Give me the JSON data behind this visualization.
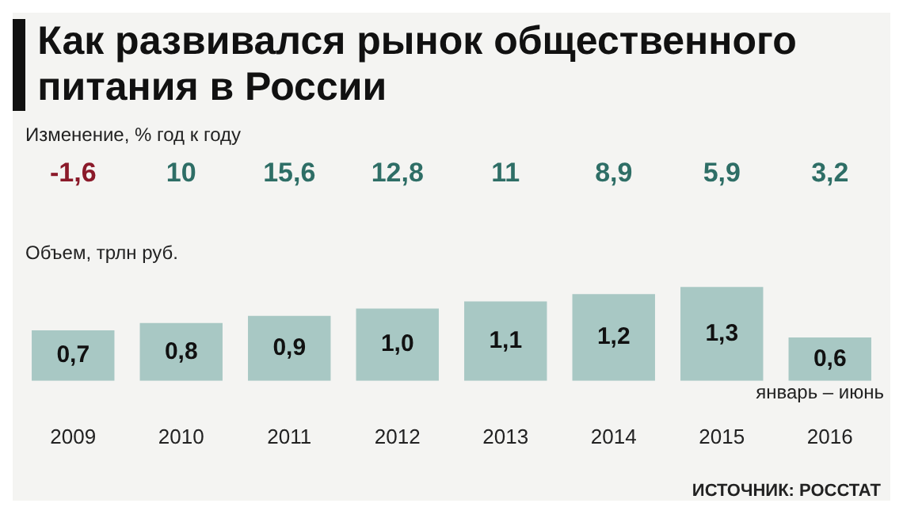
{
  "chart_data": {
    "type": "bar",
    "title": "Как развивался рынок общественного питания в России",
    "ylabel": "Объем, трлн руб.",
    "tick_labels": "x",
    "categories": [
      "2009",
      "2010",
      "2011",
      "2012",
      "2013",
      "2014",
      "2015",
      "2016"
    ],
    "values": [
      0.7,
      0.8,
      0.9,
      1.0,
      1.1,
      1.2,
      1.3,
      0.6
    ],
    "color": "#a8c8c4",
    "value_labels": [
      "0,7",
      "0,8",
      "0,9",
      "1,0",
      "1,1",
      "1,2",
      "1,3",
      "0,6"
    ],
    "annotations": [
      "Изменение, % год к году",
      "-1,6",
      "10",
      "15,6",
      "12,8",
      "11",
      "8,9",
      "5,9",
      "3,2",
      "январь – июнь",
      "ИСТОЧНИК: РОССТАТ"
    ]
  }
}
